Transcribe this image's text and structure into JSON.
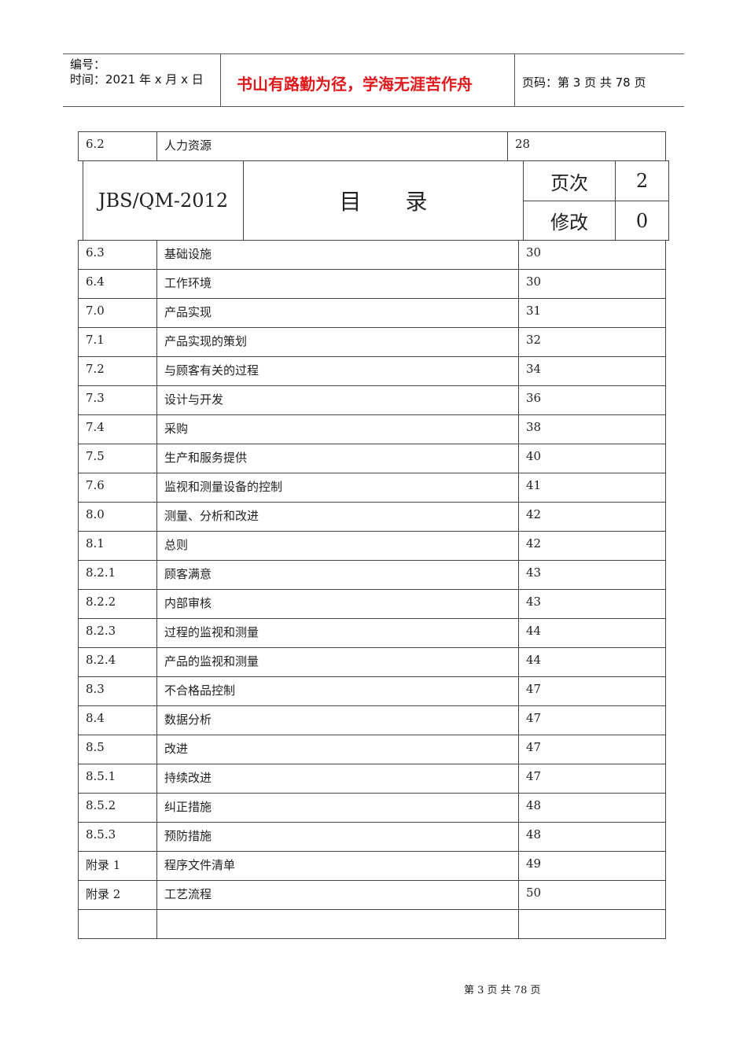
{
  "header": {
    "number_label": "编号：",
    "date_label": "时间：2021 年 x 月 x 日",
    "motto": "书山有路勤为径，学海无涯苦作舟",
    "page_label": "页码：第 3 页  共 78 页"
  },
  "first_row": {
    "num": "6.2",
    "title": "人力资源",
    "page": "28"
  },
  "doc_header": {
    "code": "JBS/QM-2012",
    "title": "目　　录",
    "page_label": "页次",
    "page_value": "2",
    "rev_label": "修改",
    "rev_value": "0"
  },
  "toc": [
    {
      "num": "6.3",
      "title": "基础设施",
      "page": "30"
    },
    {
      "num": "6.4",
      "title": "工作环境",
      "page": "30"
    },
    {
      "num": "7.0",
      "title": "产品实现",
      "page": "31"
    },
    {
      "num": "7.1",
      "title": "产品实现的策划",
      "page": "32"
    },
    {
      "num": "7.2",
      "title": "与顾客有关的过程",
      "page": "34"
    },
    {
      "num": "7.3",
      "title": "设计与开发",
      "page": "36"
    },
    {
      "num": "7.4",
      "title": "采购",
      "page": "38"
    },
    {
      "num": "7.5",
      "title": "生产和服务提供",
      "page": "40"
    },
    {
      "num": "7.6",
      "title": "监视和测量设备的控制",
      "page": "41"
    },
    {
      "num": "8.0",
      "title": "测量、分析和改进",
      "page": "42"
    },
    {
      "num": "8.1",
      "title": "总则",
      "page": "42"
    },
    {
      "num": "8.2.1",
      "title": "顾客满意",
      "page": "43"
    },
    {
      "num": "8.2.2",
      "title": "内部审核",
      "page": "43"
    },
    {
      "num": "8.2.3",
      "title": "过程的监视和测量",
      "page": "44"
    },
    {
      "num": "8.2.4",
      "title": "产品的监视和测量",
      "page": "44"
    },
    {
      "num": "8.3",
      "title": "不合格品控制",
      "page": "47"
    },
    {
      "num": "8.4",
      "title": "数据分析",
      "page": "47"
    },
    {
      "num": "8.5",
      "title": "改进",
      "page": "47"
    },
    {
      "num": "8.5.1",
      "title": "持续改进",
      "page": "47"
    },
    {
      "num": "8.5.2",
      "title": "纠正措施",
      "page": "48"
    },
    {
      "num": "8.5.3",
      "title": "预防措施",
      "page": "48"
    },
    {
      "num": "附录 1",
      "title": "程序文件清单",
      "page": "49"
    },
    {
      "num": "附录 2",
      "title": "工艺流程",
      "page": "50"
    },
    {
      "num": "",
      "title": "",
      "page": ""
    }
  ],
  "footer": {
    "text": "第 3 页 共 78 页"
  }
}
